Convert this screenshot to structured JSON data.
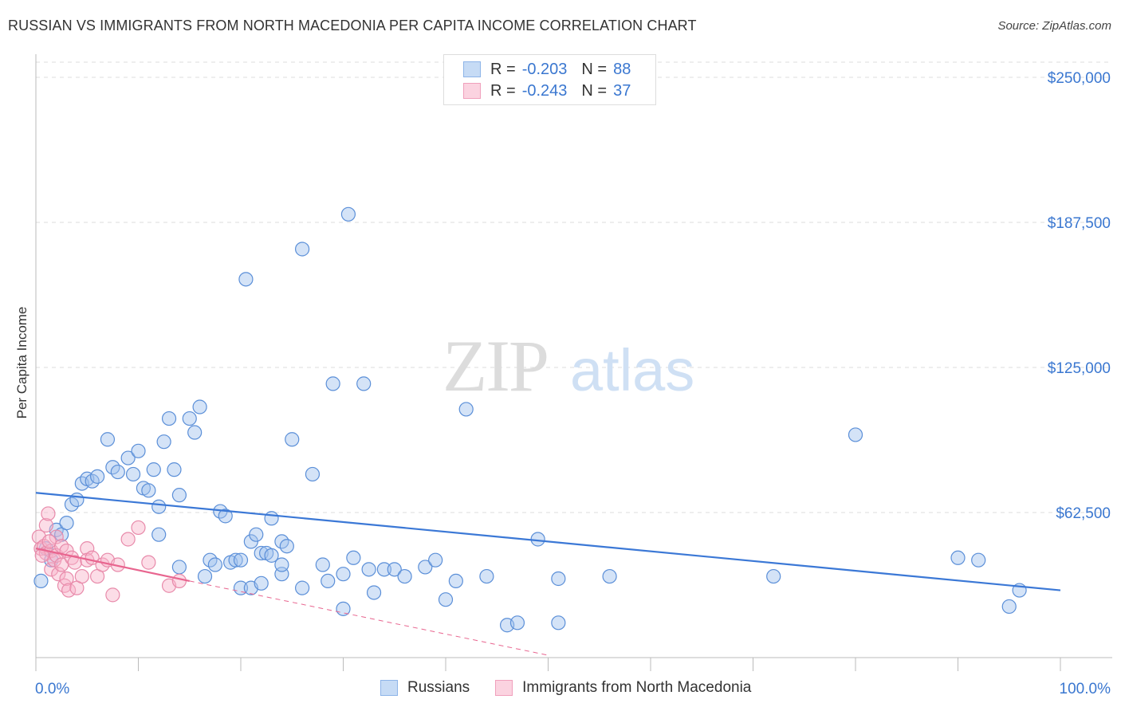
{
  "title": "RUSSIAN VS IMMIGRANTS FROM NORTH MACEDONIA PER CAPITA INCOME CORRELATION CHART",
  "source": "Source: ZipAtlas.com",
  "watermark": {
    "zip": "ZIP",
    "atlas": "atlas"
  },
  "legend_top": [
    {
      "r_label": "R =",
      "r_value": "-0.203",
      "n_label": "N =",
      "n_value": "88",
      "color": "#8db4e8",
      "fill": "#c6dbf5"
    },
    {
      "r_label": "R =",
      "r_value": "-0.243",
      "n_label": "N =",
      "n_value": "37",
      "color": "#f0a0bc",
      "fill": "#fbd3e0"
    }
  ],
  "legend_bottom": [
    "Russians",
    "Immigrants from North Macedonia"
  ],
  "colors": {
    "blue": "#3b78d6",
    "blue_fill": "rgba(160,194,238,0.45)",
    "blue_stroke": "#5b8fd8",
    "pink": "#e8658f",
    "pink_fill": "rgba(248,180,202,0.45)",
    "pink_stroke": "#e88aaa",
    "tick_text": "#3a77d0",
    "grid": "#dddddd"
  },
  "chart_data": {
    "type": "scatter",
    "ylabel": "Per Capita Income",
    "xlim": [
      0,
      100
    ],
    "ylim": [
      0,
      250000
    ],
    "x_tick_labels": [
      "0.0%",
      "100.0%"
    ],
    "y_ticks": [
      62500,
      125000,
      187500,
      250000
    ],
    "y_tick_labels": [
      "$62,500",
      "$125,000",
      "$187,500",
      "$250,000"
    ],
    "series": [
      {
        "name": "Russians",
        "points": [
          [
            0.5,
            33000
          ],
          [
            1,
            47000
          ],
          [
            1.5,
            42000
          ],
          [
            2,
            55000
          ],
          [
            2.5,
            53000
          ],
          [
            3,
            58000
          ],
          [
            3.5,
            66000
          ],
          [
            4,
            68000
          ],
          [
            4.5,
            75000
          ],
          [
            5,
            77000
          ],
          [
            5.5,
            76000
          ],
          [
            6,
            78000
          ],
          [
            7,
            94000
          ],
          [
            7.5,
            82000
          ],
          [
            8,
            80000
          ],
          [
            9,
            86000
          ],
          [
            9.5,
            79000
          ],
          [
            10,
            89000
          ],
          [
            10.5,
            73000
          ],
          [
            11,
            72000
          ],
          [
            11.5,
            81000
          ],
          [
            12,
            53000
          ],
          [
            12,
            65000
          ],
          [
            12.5,
            93000
          ],
          [
            13,
            103000
          ],
          [
            13.5,
            81000
          ],
          [
            14,
            39000
          ],
          [
            14,
            70000
          ],
          [
            15,
            103000
          ],
          [
            15.5,
            97000
          ],
          [
            16,
            108000
          ],
          [
            16.5,
            35000
          ],
          [
            17,
            42000
          ],
          [
            17.5,
            40000
          ],
          [
            18,
            63000
          ],
          [
            18.5,
            61000
          ],
          [
            19,
            41000
          ],
          [
            19.5,
            42000
          ],
          [
            20,
            42000
          ],
          [
            20,
            30000
          ],
          [
            20.5,
            163000
          ],
          [
            21,
            30000
          ],
          [
            21,
            50000
          ],
          [
            21.5,
            53000
          ],
          [
            22,
            32000
          ],
          [
            22,
            45000
          ],
          [
            22.5,
            45000
          ],
          [
            23,
            44000
          ],
          [
            23,
            60000
          ],
          [
            24,
            36000
          ],
          [
            24,
            50000
          ],
          [
            24,
            40000
          ],
          [
            24.5,
            48000
          ],
          [
            25,
            94000
          ],
          [
            26,
            30000
          ],
          [
            26,
            176000
          ],
          [
            27,
            79000
          ],
          [
            28,
            40000
          ],
          [
            28.5,
            33000
          ],
          [
            29,
            118000
          ],
          [
            30,
            21000
          ],
          [
            30,
            36000
          ],
          [
            30.5,
            191000
          ],
          [
            31,
            43000
          ],
          [
            32,
            118000
          ],
          [
            32.5,
            38000
          ],
          [
            33,
            28000
          ],
          [
            34,
            38000
          ],
          [
            35,
            38000
          ],
          [
            36,
            35000
          ],
          [
            38,
            39000
          ],
          [
            39,
            42000
          ],
          [
            40,
            25000
          ],
          [
            41,
            33000
          ],
          [
            42,
            107000
          ],
          [
            44,
            35000
          ],
          [
            46,
            14000
          ],
          [
            47,
            15000
          ],
          [
            49,
            51000
          ],
          [
            51,
            34000
          ],
          [
            51,
            15000
          ],
          [
            56,
            35000
          ],
          [
            72,
            35000
          ],
          [
            80,
            96000
          ],
          [
            90,
            43000
          ],
          [
            92,
            42000
          ],
          [
            95,
            22000
          ],
          [
            96,
            29000
          ]
        ]
      },
      {
        "name": "Immigrants from North Macedonia",
        "points": [
          [
            0.3,
            52000
          ],
          [
            0.5,
            47000
          ],
          [
            0.8,
            48000
          ],
          [
            1,
            45000
          ],
          [
            1,
            57000
          ],
          [
            1.2,
            62000
          ],
          [
            1.5,
            46000
          ],
          [
            1.5,
            38000
          ],
          [
            1.8,
            42000
          ],
          [
            2,
            44000
          ],
          [
            2,
            52000
          ],
          [
            2.2,
            36000
          ],
          [
            2.5,
            48000
          ],
          [
            2.5,
            40000
          ],
          [
            2.8,
            31000
          ],
          [
            3,
            34000
          ],
          [
            3,
            46000
          ],
          [
            3.2,
            29000
          ],
          [
            3.5,
            43000
          ],
          [
            3.8,
            41000
          ],
          [
            4,
            30000
          ],
          [
            4.5,
            35000
          ],
          [
            5,
            47000
          ],
          [
            5,
            42000
          ],
          [
            5.5,
            43000
          ],
          [
            6,
            35000
          ],
          [
            6.5,
            40000
          ],
          [
            7,
            42000
          ],
          [
            7.5,
            27000
          ],
          [
            8,
            40000
          ],
          [
            9,
            51000
          ],
          [
            10,
            56000
          ],
          [
            11,
            41000
          ],
          [
            13,
            31000
          ],
          [
            14,
            33000
          ],
          [
            0.6,
            44000
          ],
          [
            1.3,
            50000
          ]
        ]
      }
    ],
    "trendlines": [
      {
        "series": "Russians",
        "from": [
          0,
          71000
        ],
        "to": [
          100,
          29000
        ],
        "style": "solid"
      },
      {
        "series": "Immigrants from North Macedonia",
        "from": [
          0,
          47000
        ],
        "to": [
          15,
          33000
        ],
        "style": "solid"
      },
      {
        "series": "Immigrants from North Macedonia",
        "from": [
          15,
          33000
        ],
        "to": [
          50,
          1000
        ],
        "style": "dashed"
      }
    ]
  }
}
